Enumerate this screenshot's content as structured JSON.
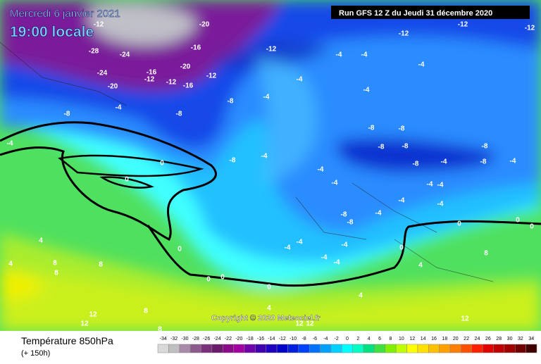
{
  "header": {
    "date": "Mercredi 6 janvier 2021",
    "time": "19:00 locale",
    "run": "Run GFS 12 Z du Jeudi 31 décembre 2020"
  },
  "copyright": "Copyright © 2020 Meteociel.fr",
  "legend": {
    "title": "Température 850hPa",
    "lead": "(+ 150h)"
  },
  "scale": {
    "values": [
      -34,
      -32,
      -30,
      -28,
      -26,
      -24,
      -22,
      -20,
      -18,
      -16,
      -14,
      -12,
      -10,
      -8,
      -6,
      -4,
      -2,
      0,
      2,
      4,
      6,
      8,
      10,
      12,
      14,
      16,
      18,
      20,
      22,
      24,
      26,
      28,
      30,
      32,
      34
    ],
    "colors": [
      "#d9d9d9",
      "#bfbfbf",
      "#a98aa9",
      "#8c5a8c",
      "#7a2f7a",
      "#6a1a6a",
      "#8a0a8a",
      "#a000a0",
      "#7000a8",
      "#4000b0",
      "#2000c0",
      "#0000c8",
      "#0020e0",
      "#0040ff",
      "#0070ff",
      "#00a0ff",
      "#00d0ff",
      "#00ffff",
      "#00ffc0",
      "#00e080",
      "#40e040",
      "#80f000",
      "#c0ff00",
      "#ffff00",
      "#ffe000",
      "#ffc000",
      "#ffa000",
      "#ff8000",
      "#ff5000",
      "#ff2000",
      "#e00000",
      "#c00000",
      "#a00000",
      "#700000",
      "#400000"
    ]
  },
  "map_labels": [
    "-12",
    "-20",
    "-28",
    "-24",
    "-16",
    "-20",
    "-24",
    "-16",
    "-12",
    "-12",
    "-16",
    "-20",
    "-12",
    "-12",
    "-12",
    "-12",
    "-12",
    "-4",
    "-4",
    "-4",
    "-4",
    "-4",
    "-4",
    "-4",
    "-8",
    "-8",
    "-8",
    "-4",
    "-4",
    "-8",
    "0",
    "0",
    "-8",
    "-8",
    "-8",
    "-8",
    "-8",
    "-8",
    "-8",
    "-4",
    "-4",
    "-4",
    "-4",
    "-4",
    "-4",
    "-4",
    "-4",
    "-8",
    "-8",
    "-4",
    "0",
    "0",
    "0",
    "0",
    "0",
    "-4",
    "-4",
    "-4",
    "-4",
    "-4",
    "0",
    "0",
    "0",
    "4",
    "4",
    "8",
    "8",
    "8",
    "4",
    "4",
    "4",
    "8",
    "8",
    "8",
    "12",
    "12",
    "12",
    "12",
    "12"
  ]
}
